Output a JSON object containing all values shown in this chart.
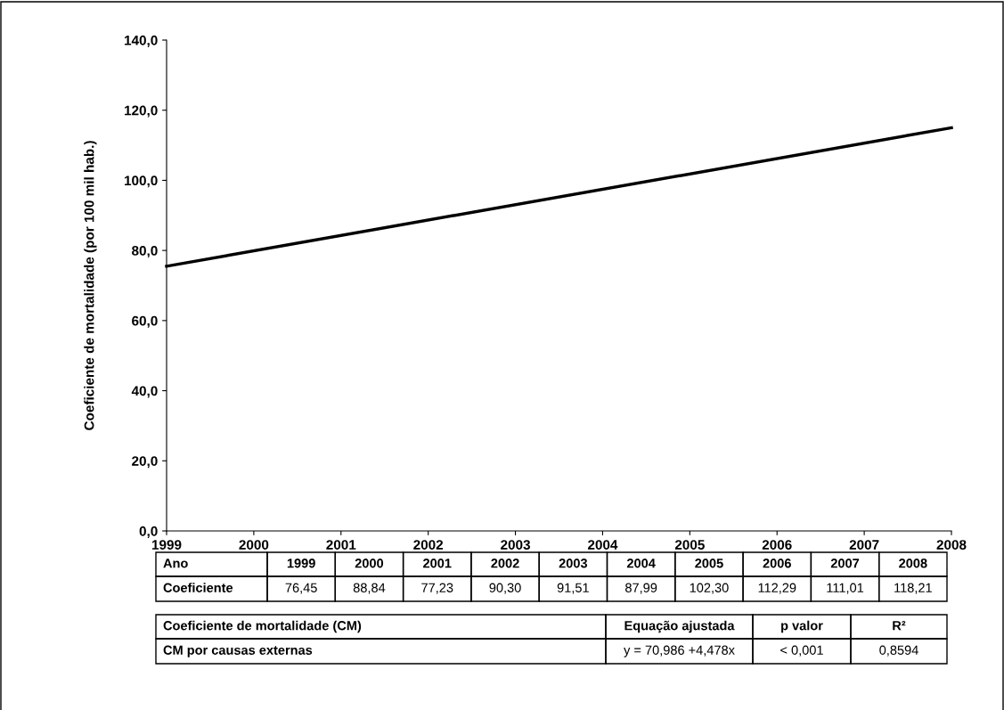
{
  "chart_data": {
    "type": "line",
    "ylabel": "Coeficiente de mortalidade (por 100 mil hab.)",
    "x": [
      1999,
      2008
    ],
    "series": [
      {
        "color": "#000000",
        "values": [
          75.5,
          115.0
        ]
      }
    ],
    "xlim": [
      1999,
      2008
    ],
    "xticks": [
      1999,
      2000,
      2001,
      2002,
      2003,
      2004,
      2005,
      2006,
      2007,
      2008
    ],
    "ylim": [
      0,
      140
    ],
    "yticks": [
      {
        "value": 0,
        "label": "0,0"
      },
      {
        "value": 20,
        "label": "20,0"
      },
      {
        "value": 40,
        "label": "40,0"
      },
      {
        "value": 60,
        "label": "60,0"
      },
      {
        "value": 80,
        "label": "80,0"
      },
      {
        "value": 100,
        "label": "100,0"
      },
      {
        "value": 120,
        "label": "120,0"
      },
      {
        "value": 140,
        "label": "140,0"
      }
    ],
    "grid": false,
    "legend": false,
    "marker": "none",
    "line_style": "solid",
    "annotations": [
      "Ano",
      "1999",
      "2000",
      "2001",
      "2002",
      "2003",
      "2004",
      "2005",
      "2006",
      "2007",
      "2008",
      "Coeficiente",
      "76,45",
      "88,84",
      "77,23",
      "90,30",
      "91,51",
      "87,99",
      "102,30",
      "112,29",
      "111,01",
      "118,21",
      "Coeficiente de mortalidade (CM)",
      "Equação ajustada",
      "p valor",
      "R²",
      "CM por causas externas",
      "y = 70,986 +4,478x",
      "< 0,001",
      "0,8594"
    ]
  }
}
